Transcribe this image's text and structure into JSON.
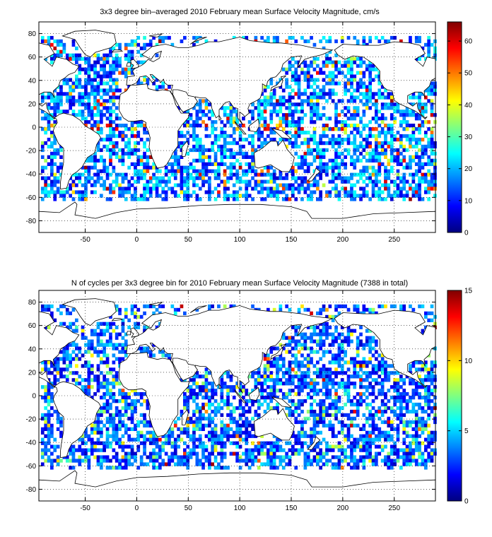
{
  "panels": [
    {
      "title": "3x3 degree bin–averaged 2010 February mean Surface Velocity Magnitude, cm/s",
      "x_ticks": [
        -50,
        0,
        50,
        100,
        150,
        200,
        250
      ],
      "y_ticks": [
        80,
        60,
        40,
        20,
        0,
        -20,
        -40,
        -60,
        -80
      ],
      "xlim": [
        -95,
        290
      ],
      "ylim": [
        -90,
        90
      ],
      "colorbar": {
        "min": 0,
        "max": 66,
        "ticks": [
          0,
          10,
          20,
          30,
          40,
          50,
          60
        ]
      },
      "seed": 7
    },
    {
      "title": "N of cycles per 3x3 degree bin for 2010 February mean Surface Velocity Magnitude (7388 in total)",
      "x_ticks": [
        -50,
        0,
        50,
        100,
        150,
        200,
        250
      ],
      "y_ticks": [
        80,
        60,
        40,
        20,
        0,
        -20,
        -40,
        -60,
        -80
      ],
      "xlim": [
        -95,
        290
      ],
      "ylim": [
        -90,
        90
      ],
      "colorbar": {
        "min": 0,
        "max": 15,
        "ticks": [
          0,
          5,
          10,
          15
        ]
      },
      "seed": 19
    }
  ],
  "colormap": "jet",
  "grid": "dotted",
  "colors": {
    "land_outline": "#000000",
    "background": "#ffffff"
  }
}
